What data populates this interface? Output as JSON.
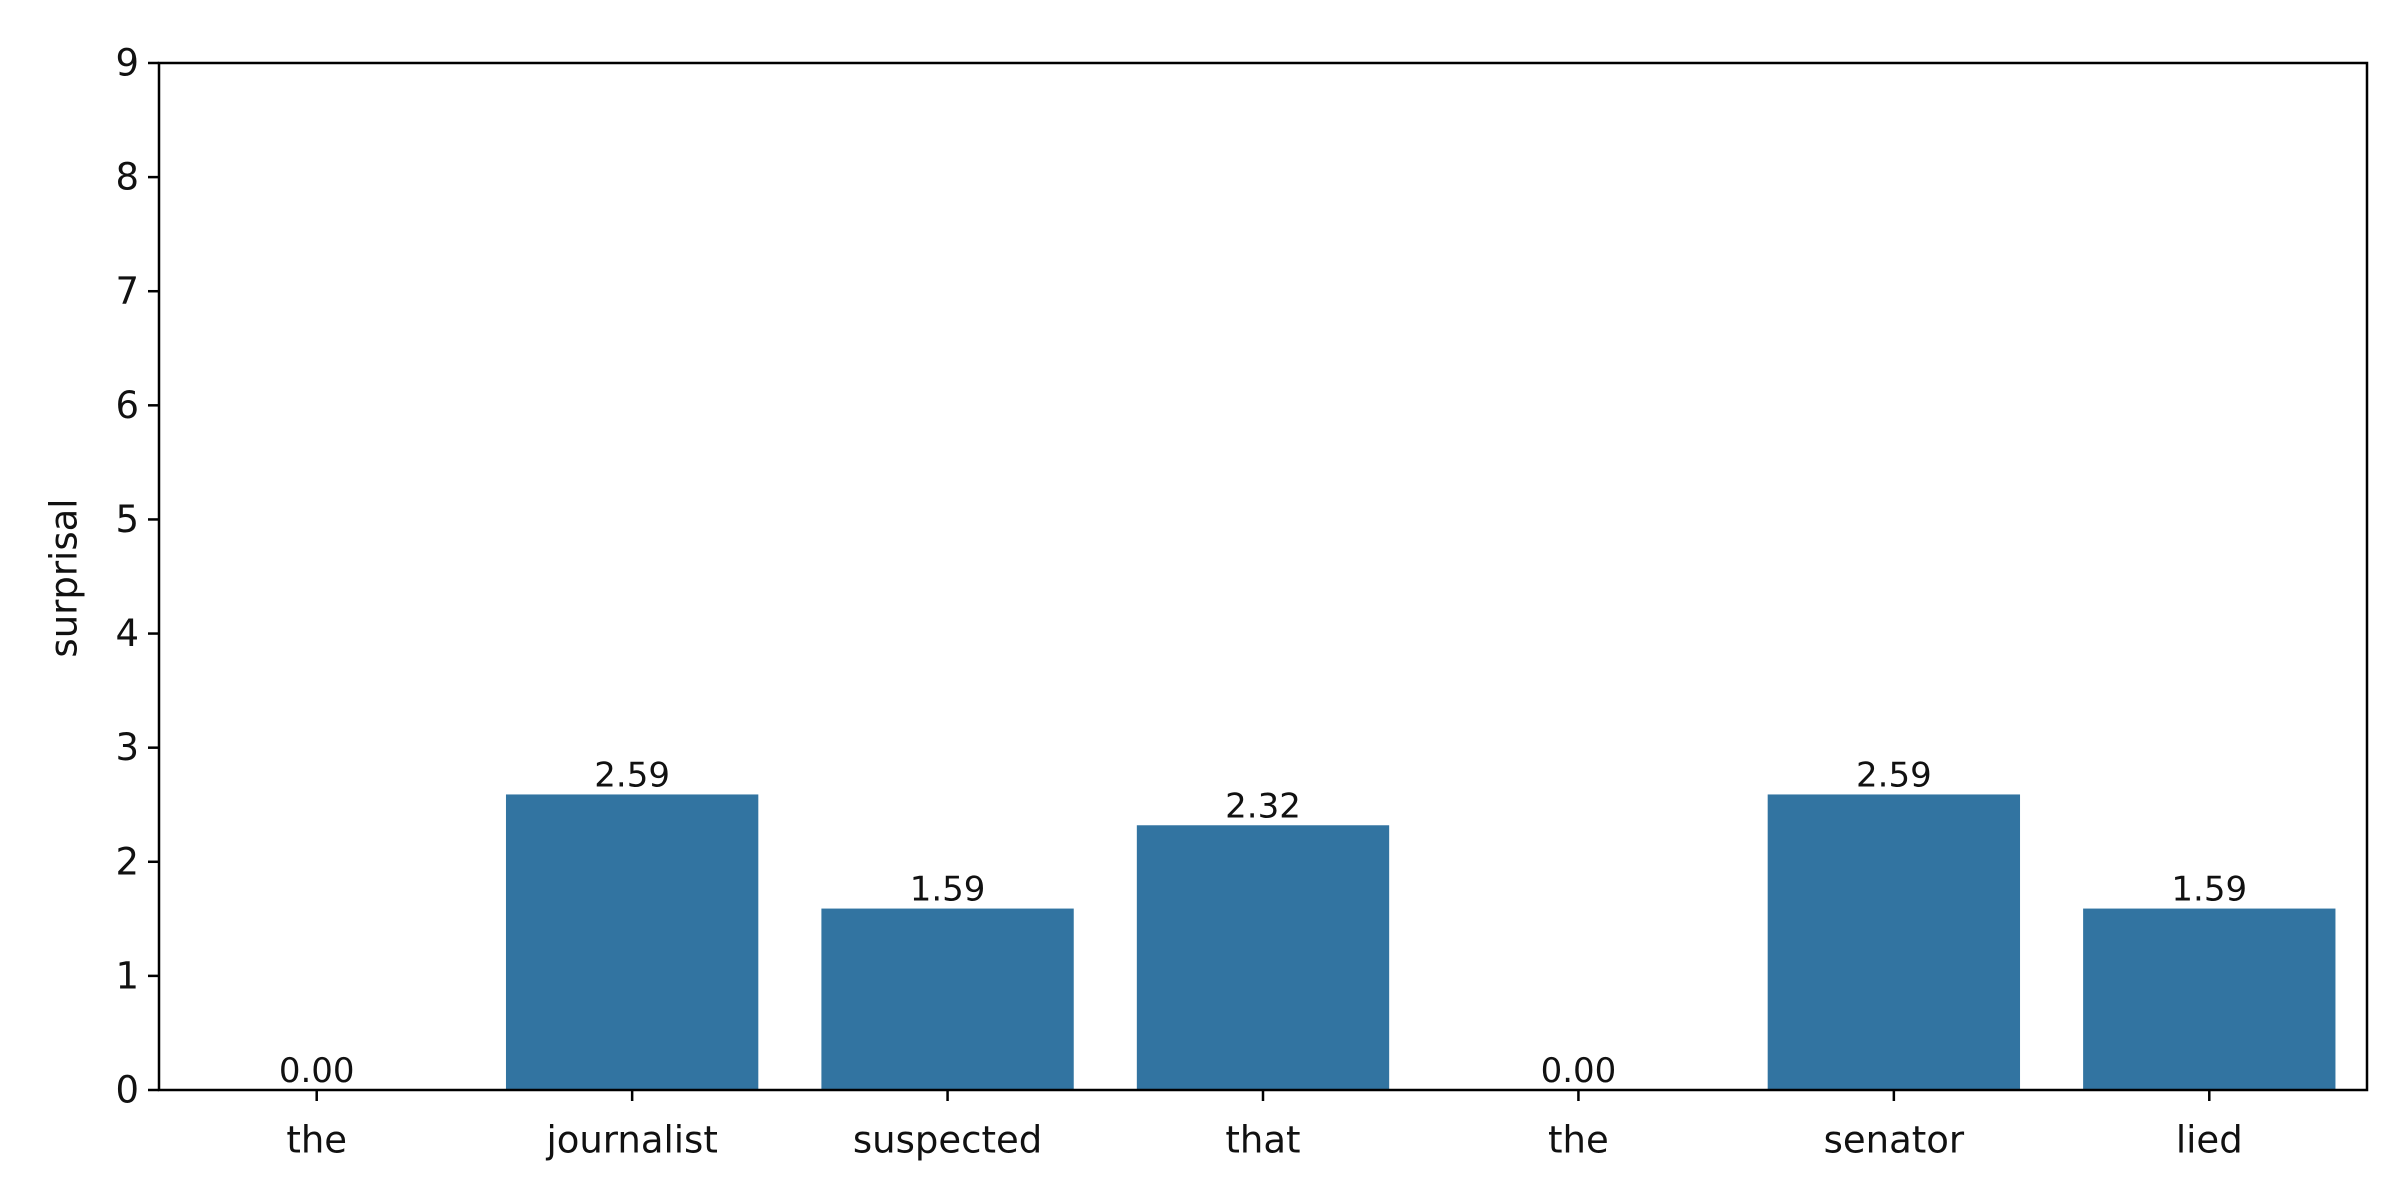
{
  "chart_data": {
    "type": "bar",
    "categories": [
      "the",
      "journalist",
      "suspected",
      "that",
      "the",
      "senator",
      "lied"
    ],
    "values": [
      0.0,
      2.59,
      1.59,
      2.32,
      0.0,
      2.59,
      1.59
    ],
    "data_labels": [
      "0.00",
      "2.59",
      "1.59",
      "2.32",
      "0.00",
      "2.59",
      "1.59"
    ],
    "title": "",
    "xlabel": "",
    "ylabel": "surprisal",
    "ylim": [
      0,
      9
    ],
    "yticks": [
      0,
      1,
      2,
      3,
      4,
      5,
      6,
      7,
      8,
      9
    ],
    "grid": false,
    "legend": "none",
    "bar_color": "#3274a1",
    "axis_color": "#000000"
  }
}
